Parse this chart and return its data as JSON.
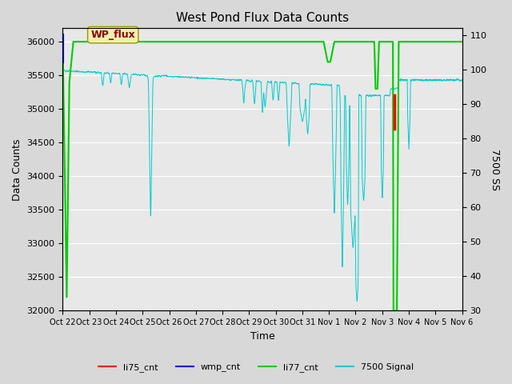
{
  "title": "West Pond Flux Data Counts",
  "xlabel": "Time",
  "ylabel_left": "Data Counts",
  "ylabel_right": "7500 SS",
  "ylim_left": [
    32000,
    36200
  ],
  "ylim_right": [
    30,
    112
  ],
  "background_color": "#d8d8d8",
  "plot_bg_color": "#e8e8e8",
  "annotation_text": "WP_flux",
  "x_tick_labels": [
    "Oct 22",
    "Oct 23",
    "Oct 24",
    "Oct 25",
    "Oct 26",
    "Oct 27",
    "Oct 28",
    "Oct 29",
    "Oct 30",
    "Oct 31",
    "Nov 1",
    "Nov 2",
    "Nov 3",
    "Nov 4",
    "Nov 5",
    "Nov 6"
  ],
  "legend_labels": [
    "li75_cnt",
    "wmp_cnt",
    "li77_cnt",
    "7500 Signal"
  ],
  "legend_colors": [
    "#ff0000",
    "#0000ff",
    "#00cc00",
    "#00cccc"
  ],
  "grid_color": "#ffffff",
  "figsize": [
    6.4,
    4.8
  ],
  "dpi": 100
}
